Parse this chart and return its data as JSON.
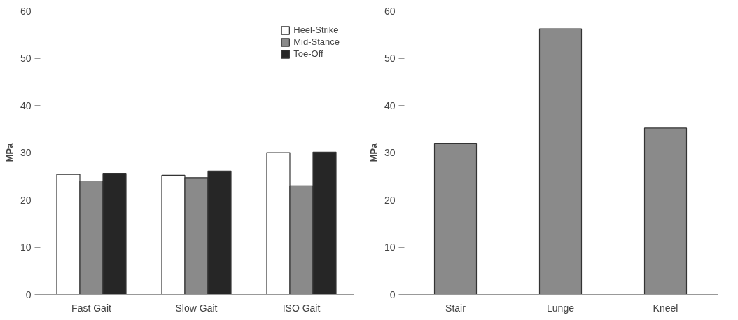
{
  "chart_data": [
    {
      "type": "bar",
      "categories": [
        "Fast Gait",
        "Slow Gait",
        "ISO Gait"
      ],
      "ylabel": "MPa",
      "ylim": [
        0,
        60
      ],
      "yticks": [
        0,
        10,
        20,
        30,
        40,
        50,
        60
      ],
      "grid": false,
      "legend": "top right",
      "series": [
        {
          "name": "Heel-Strike",
          "color": "#ffffff",
          "values": [
            25.4,
            25.2,
            30
          ]
        },
        {
          "name": "Mid-Stance",
          "color": "#8a8a8a",
          "values": [
            24,
            24.7,
            23
          ]
        },
        {
          "name": "Toe-Off",
          "color": "#262626",
          "values": [
            25.6,
            26.1,
            30.1
          ]
        }
      ]
    },
    {
      "type": "bar",
      "categories": [
        "Stair",
        "Lunge",
        "Kneel"
      ],
      "ylabel": "MPa",
      "ylim": [
        0,
        60
      ],
      "yticks": [
        0,
        10,
        20,
        30,
        40,
        50,
        60
      ],
      "grid": false,
      "legend": false,
      "series": [
        {
          "color": "#8a8a8a",
          "values": [
            32,
            56.2,
            35.2
          ]
        }
      ]
    }
  ]
}
